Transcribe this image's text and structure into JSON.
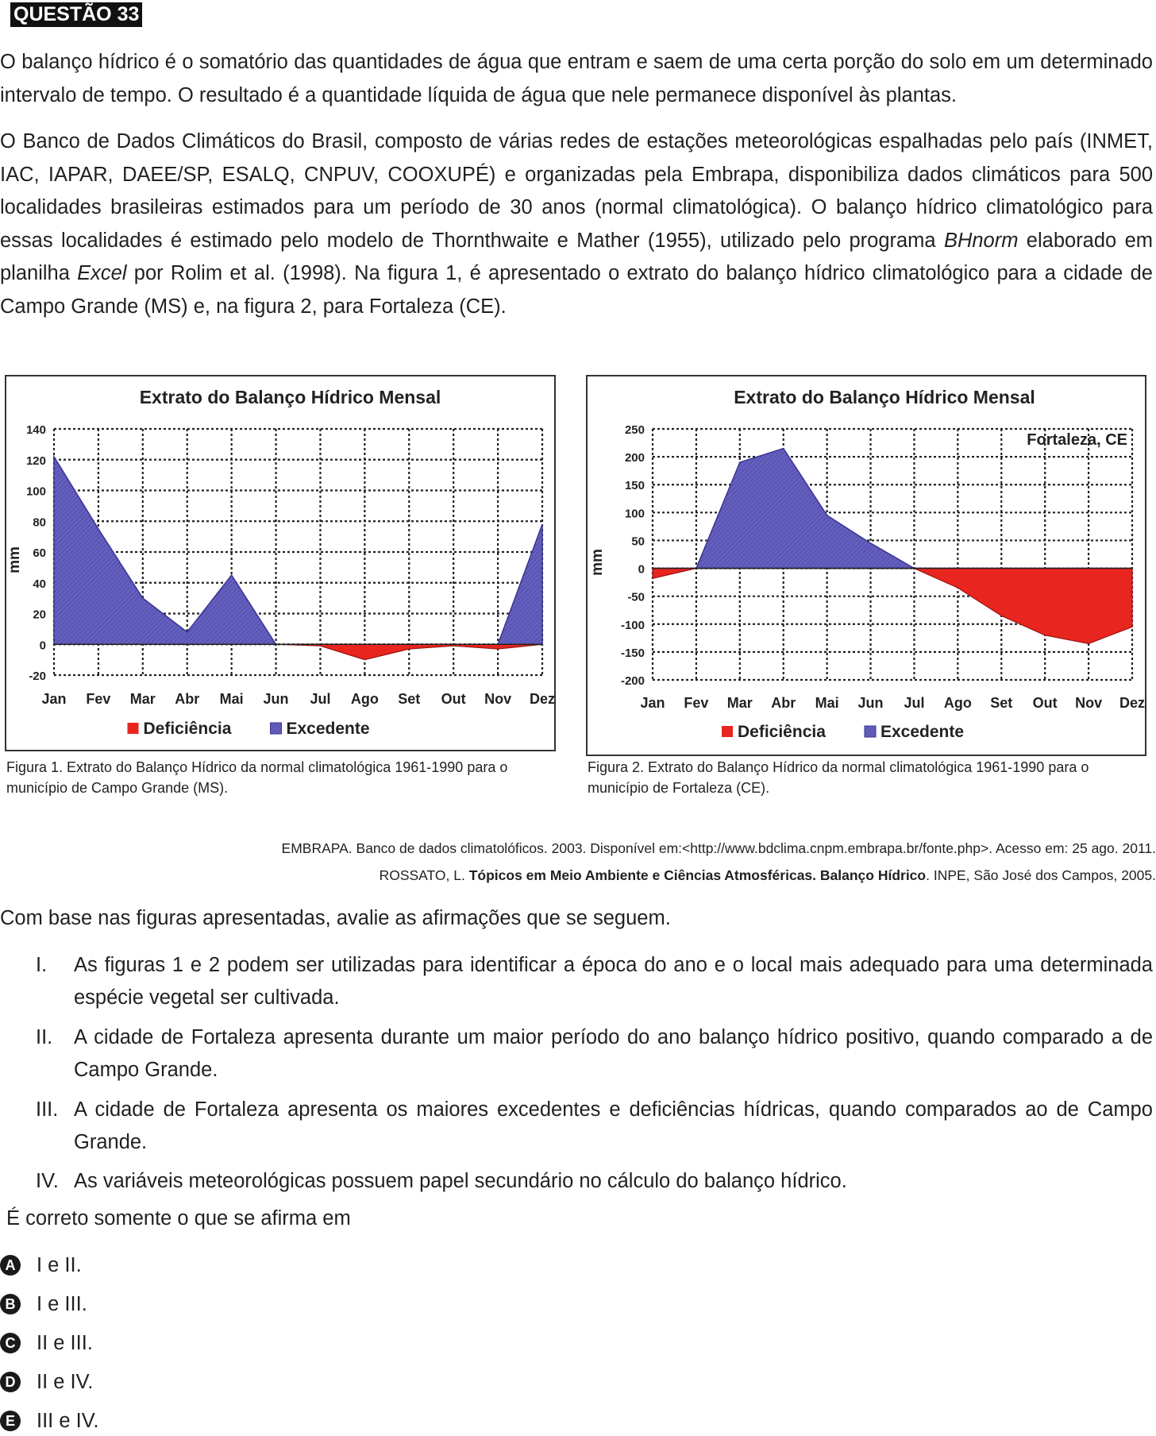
{
  "question_label": "QUESTÃO 33",
  "paragraph1": "O balanço hídrico é o somatório das quantidades de água que entram e saem de uma certa porção do solo em um determinado intervalo de tempo. O resultado é a quantidade líquida de água que nele permanece disponível às plantas.",
  "paragraph2": {
    "part1": "O Banco de Dados Climáticos do Brasil, composto de várias redes de estações meteorológicas espalhadas pelo país (INMET, IAC, IAPAR, DAEE/SP, ESALQ, CNPUV, COOXUPÉ) e organizadas pela Embrapa, disponibiliza dados climáticos para 500 localidades brasileiras estimados para um período de 30 anos (normal climatológica). O balanço hídrico climatológico para essas localidades é estimado pelo modelo de Thornthwaite e Mather (1955), utilizado pelo programa ",
    "italic1": "BHnorm",
    "part2": " elaborado em planilha ",
    "italic2": "Excel",
    "part3": " por Rolim et al. (1998). Na figura 1, é apresentado o extrato do balanço hídrico climatológico para a cidade de Campo Grande (MS) e, na figura 2, para Fortaleza (CE)."
  },
  "colors": {
    "deficiencia": "#e8251f",
    "excedente": "#5b55b5",
    "grid": "#222222"
  },
  "chart_data": [
    {
      "type": "area",
      "title": "Extrato do Balanço Hídrico Mensal",
      "subtitle": "",
      "ylabel": "mm",
      "ylim": [
        -20,
        140
      ],
      "yticks": [
        "140",
        "120",
        "100",
        "80",
        "60",
        "40",
        "20",
        "0",
        "-20"
      ],
      "ytick_values": [
        140,
        120,
        100,
        80,
        60,
        40,
        20,
        0,
        -20
      ],
      "categories": [
        "Jan",
        "Fev",
        "Mar",
        "Abr",
        "Mai",
        "Jun",
        "Jul",
        "Ago",
        "Set",
        "Out",
        "Nov",
        "Dez"
      ],
      "series": [
        {
          "name": "Deficiência",
          "values": [
            0,
            0,
            0,
            0,
            0,
            0,
            -1,
            -10,
            -3,
            -1,
            -3,
            0
          ]
        },
        {
          "name": "Excedente",
          "values": [
            122,
            75,
            30,
            8,
            45,
            0,
            0,
            0,
            0,
            0,
            0,
            78
          ]
        }
      ],
      "legend": [
        "Deficiência",
        "Excedente"
      ],
      "legend_position": "bottom",
      "grid": true
    },
    {
      "type": "area",
      "title": "Extrato do Balanço Hídrico Mensal",
      "subtitle": "Fortaleza, CE",
      "ylabel": "mm",
      "ylim": [
        -200,
        250
      ],
      "yticks": [
        "250",
        "200",
        "150",
        "100",
        "50",
        "0",
        "-50",
        "-100",
        "-150",
        "-200"
      ],
      "ytick_values": [
        250,
        200,
        150,
        100,
        50,
        0,
        -50,
        -100,
        -150,
        -200
      ],
      "categories": [
        "Jan",
        "Fev",
        "Mar",
        "Abr",
        "Mai",
        "Jun",
        "Jul",
        "Ago",
        "Set",
        "Out",
        "Nov",
        "Dez"
      ],
      "series": [
        {
          "name": "Deficiência",
          "values": [
            -18,
            0,
            0,
            0,
            0,
            0,
            0,
            -35,
            -85,
            -120,
            -135,
            -105
          ]
        },
        {
          "name": "Excedente",
          "values": [
            0,
            0,
            190,
            215,
            95,
            45,
            0,
            0,
            0,
            0,
            0,
            0
          ]
        }
      ],
      "legend": [
        "Deficiência",
        "Excedente"
      ],
      "legend_position": "bottom",
      "grid": true
    }
  ],
  "caption1": "Figura 1. Extrato do Balanço Hídrico da normal climatológica 1961-1990 para o município de Campo Grande (MS).",
  "caption2": "Figura 2. Extrato do Balanço Hídrico da normal climatológica 1961-1990 para o município de Fortaleza (CE).",
  "ref1": "EMBRAPA. Banco de dados climatolóficos. 2003. Disponível em:<http://www.bdclima.cnpm.embrapa.br/fonte.php>. Acesso em: 25 ago. 2011.",
  "ref2": {
    "pre": "ROSSATO, L. ",
    "bold": "Tópicos em Meio Ambiente e Ciências Atmosféricas. Balanço Hídrico",
    "post": ". INPE, São José dos Campos, 2005."
  },
  "intro": "Com base nas figuras apresentadas, avalie as afirmações que se seguem.",
  "statements": [
    {
      "num": "I.",
      "text": "As figuras 1 e 2 podem ser utilizadas para identificar a época do ano e o local mais adequado para uma determinada espécie vegetal ser cultivada."
    },
    {
      "num": "II.",
      "text": "A cidade de Fortaleza apresenta durante um maior período do ano balanço hídrico positivo, quando comparado a de Campo Grande."
    },
    {
      "num": "III.",
      "text": "A cidade de Fortaleza apresenta os maiores excedentes e deficiências hídricas, quando comparados ao de Campo Grande."
    },
    {
      "num": "IV.",
      "text": "As variáveis meteorológicas possuem papel secundário no cálculo do balanço hídrico."
    }
  ],
  "prompt": "É correto somente o que se afirma em",
  "options": [
    {
      "letter": "A",
      "text": "I e II."
    },
    {
      "letter": "B",
      "text": "I e III."
    },
    {
      "letter": "C",
      "text": "II e III."
    },
    {
      "letter": "D",
      "text": "II e IV."
    },
    {
      "letter": "E",
      "text": "III e IV."
    }
  ]
}
